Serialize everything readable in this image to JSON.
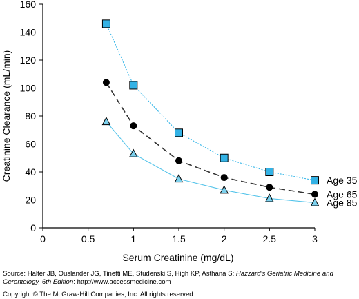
{
  "chart_data": {
    "type": "line",
    "title": "",
    "xlabel": "Serum Creatinine (mg/dL)",
    "ylabel": "Creatinine Clearance (mL/min)",
    "xlim": [
      0,
      3
    ],
    "ylim": [
      0,
      160
    ],
    "xticks": [
      0,
      0.5,
      1,
      1.5,
      2,
      2.5,
      3
    ],
    "xtick_labels": [
      "0",
      "0.5",
      "1",
      "1.5",
      "2",
      "2.5",
      "3"
    ],
    "yticks": [
      0,
      20,
      40,
      60,
      80,
      100,
      120,
      140,
      160
    ],
    "ytick_labels": [
      "0",
      "20",
      "40",
      "60",
      "80",
      "100",
      "120",
      "140",
      "160"
    ],
    "grid": false,
    "x": [
      0.7,
      1,
      1.5,
      2,
      2.5,
      3
    ],
    "series": [
      {
        "name": "Age 35",
        "values": [
          146,
          102,
          68,
          50,
          40,
          34
        ],
        "marker": "square",
        "color": "#33b2e5",
        "line_color": "#35b6e8",
        "line_style": "dotted"
      },
      {
        "name": "Age 65",
        "values": [
          104,
          73,
          48,
          36,
          29,
          24
        ],
        "marker": "circle",
        "color": "#000000",
        "line_color": "#333333",
        "line_style": "dashed"
      },
      {
        "name": "Age 85",
        "values": [
          76,
          53,
          35,
          27,
          21,
          18
        ],
        "marker": "triangle",
        "color": "#7cd1ee",
        "line_color": "#55c4ea",
        "line_style": "solid"
      }
    ]
  },
  "source": {
    "prefix": "Source: Halter JB, Ouslander JG, Tinetti ME, Studenski S, High KP, Asthana S: ",
    "title": "Hazzard's Geriatric Medicine and Gerontology, 6th Edition",
    "suffix": ": http://www.accessmedicine.com",
    "copyright": "Copyright © The McGraw-Hill Companies, Inc. All rights reserved."
  }
}
